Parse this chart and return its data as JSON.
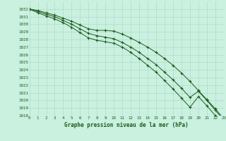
{
  "title": "Graphe pression niveau de la mer (hPa)",
  "background_color": "#caf0e0",
  "grid_color": "#aad4c4",
  "line_color": "#1a5c1a",
  "x": [
    0,
    1,
    2,
    3,
    4,
    5,
    6,
    7,
    8,
    9,
    10,
    11,
    12,
    13,
    14,
    15,
    16,
    17,
    18,
    19,
    20,
    21,
    22,
    23
  ],
  "line1": [
    1032,
    1031.8,
    1031.5,
    1031.2,
    1030.8,
    1030.4,
    1029.9,
    1029.4,
    1029.2,
    1029.2,
    1029.1,
    1028.7,
    1028.2,
    1027.6,
    1027.0,
    1026.3,
    1025.5,
    1024.6,
    1023.6,
    1022.5,
    1021.3,
    1020.1,
    1018.9,
    1017.6
  ],
  "line2": [
    1032,
    1031.7,
    1031.3,
    1031.0,
    1030.5,
    1030.0,
    1029.4,
    1028.8,
    1028.5,
    1028.3,
    1028.1,
    1027.6,
    1027.0,
    1026.3,
    1025.5,
    1024.7,
    1023.7,
    1022.7,
    1021.6,
    1020.4,
    1021.2,
    1020.0,
    1018.7,
    1017.4
  ],
  "line3": [
    1032,
    1031.5,
    1031.1,
    1030.7,
    1030.2,
    1029.6,
    1028.9,
    1028.2,
    1027.9,
    1027.7,
    1027.5,
    1027.0,
    1026.3,
    1025.5,
    1024.6,
    1023.7,
    1022.6,
    1021.5,
    1020.3,
    1019.1,
    1020.5,
    1019.3,
    1018.0,
    1017.3
  ],
  "ylim_min": 1018,
  "ylim_max": 1033,
  "xlim_min": 0,
  "xlim_max": 23,
  "yticks": [
    1018,
    1019,
    1020,
    1021,
    1022,
    1023,
    1024,
    1025,
    1026,
    1027,
    1028,
    1029,
    1030,
    1031,
    1032
  ],
  "xticks": [
    0,
    1,
    2,
    3,
    4,
    5,
    6,
    7,
    8,
    9,
    10,
    11,
    12,
    13,
    14,
    15,
    16,
    17,
    18,
    19,
    20,
    21,
    22,
    23
  ]
}
